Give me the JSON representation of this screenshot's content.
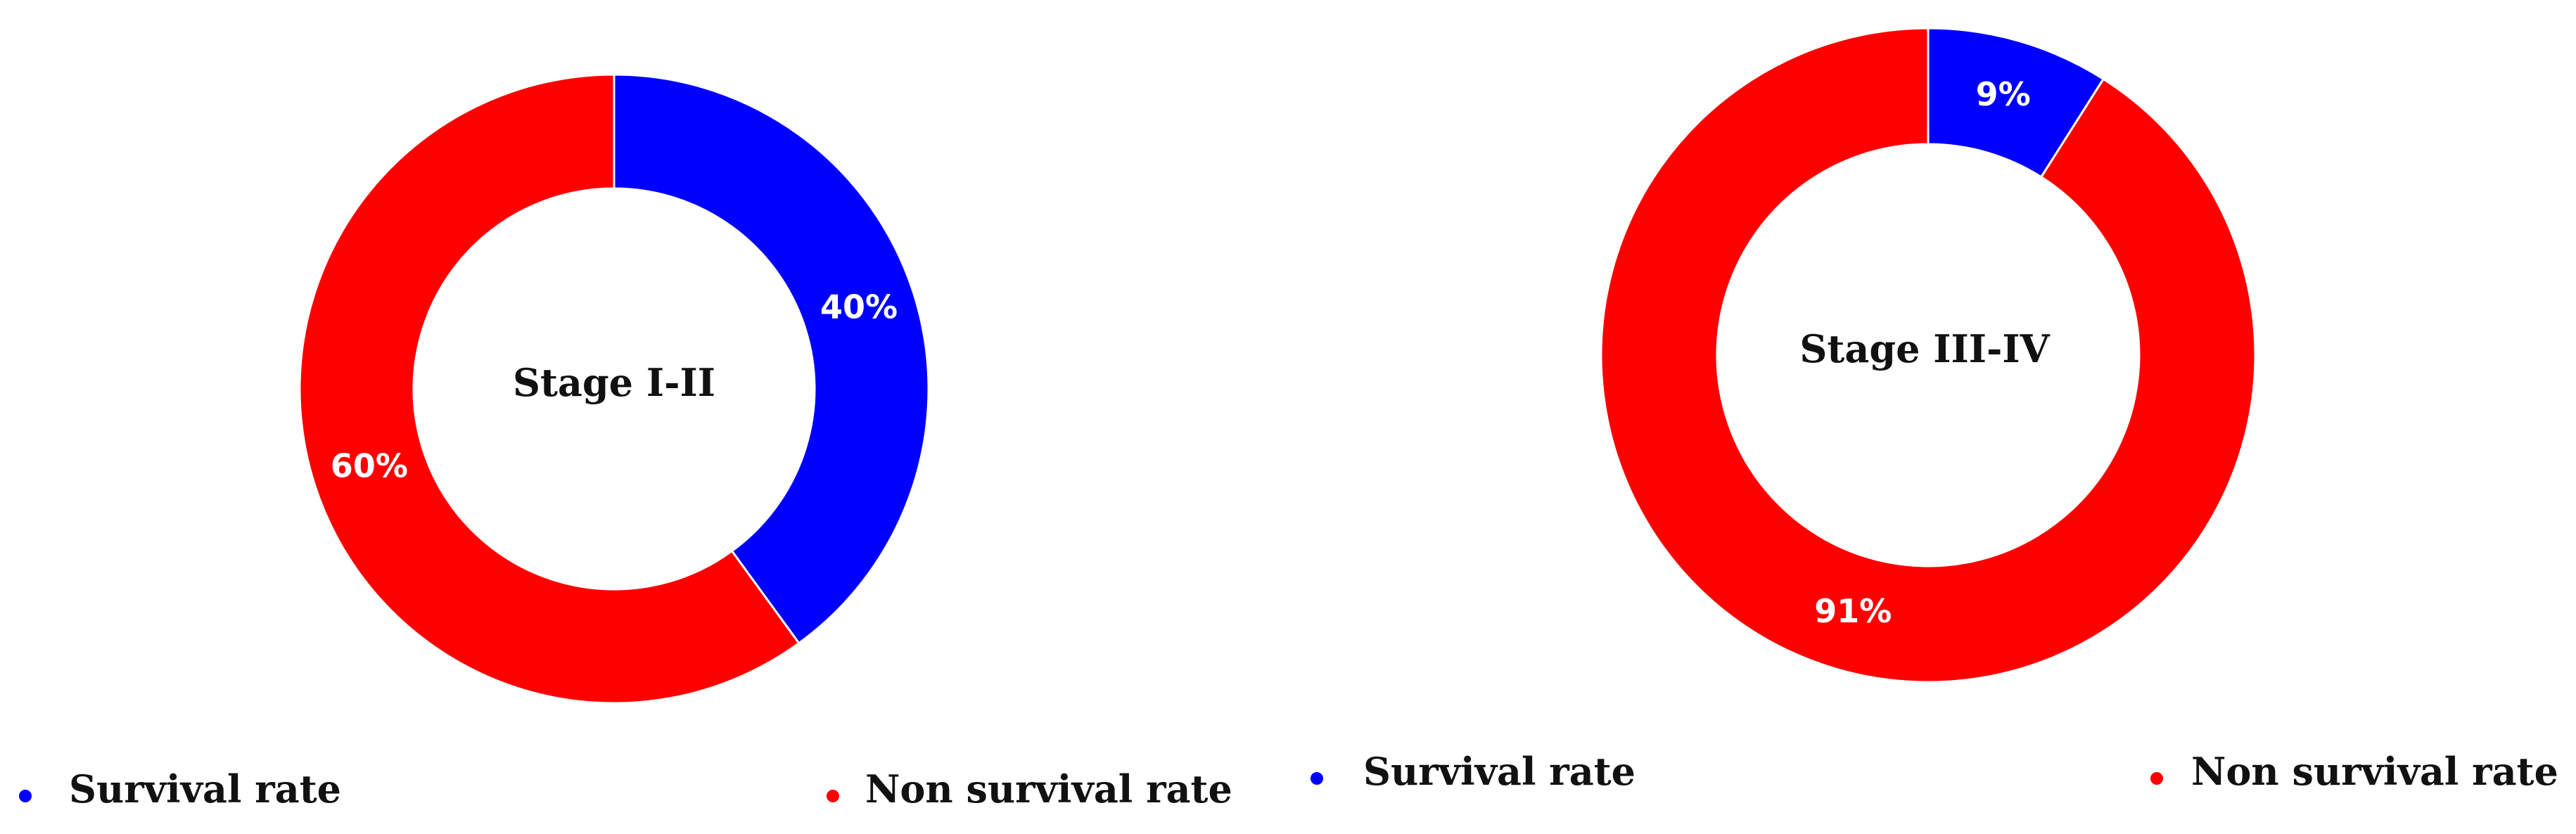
{
  "colors": {
    "survival": "#0000ff",
    "non_survival": "#ff0000"
  },
  "chart_data": [
    {
      "type": "pie",
      "subtype": "donut",
      "center_label": "Stage I-II",
      "slices": [
        {
          "label": "Survival rate",
          "value": 40,
          "display": "40%",
          "color": "#0000ff"
        },
        {
          "label": "Non survival rate",
          "value": 60,
          "display": "60%",
          "color": "#ff0000"
        }
      ],
      "legend": [
        "Survival rate",
        "Non survival rate"
      ],
      "legend_placement": "bottom"
    },
    {
      "type": "pie",
      "subtype": "donut",
      "center_label": "Stage III-IV",
      "slices": [
        {
          "label": "Survival rate",
          "value": 9,
          "display": "9%",
          "color": "#0000ff"
        },
        {
          "label": "Non survival rate",
          "value": 91,
          "display": "91%",
          "color": "#ff0000"
        }
      ],
      "legend": [
        "Survival rate",
        "Non survival rate"
      ],
      "legend_placement": "bottom"
    }
  ]
}
